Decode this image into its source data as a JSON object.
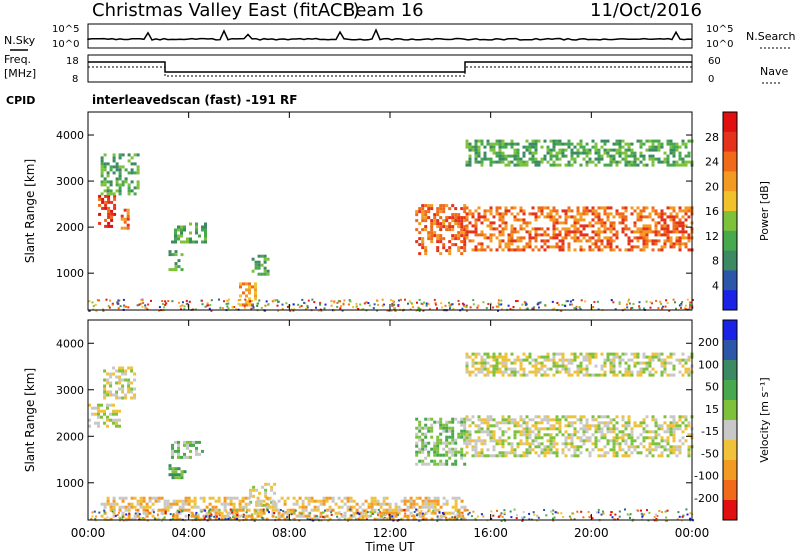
{
  "header": {
    "station": "Christmas Valley East (fitACF)",
    "beam": "Beam 16",
    "date": "11/Oct/2016"
  },
  "top_panels": {
    "nsky_label": "N.Sky",
    "nsearch_label": "N.Search",
    "noise_ticks": [
      "10^5",
      "10^0"
    ],
    "freq_label_line1": "Freq.",
    "freq_label_line2": "[MHz]",
    "freq_ticks": [
      "18",
      "8"
    ],
    "nave_label": "Nave",
    "nave_ticks": [
      "60",
      "0"
    ],
    "cpid_label": "CPID",
    "cpid_text": "interleavedscan (fast) -191 RF"
  },
  "colors": {
    "power": [
      "#1a22e6",
      "#2c57a8",
      "#3c8a64",
      "#47a84d",
      "#7ec23c",
      "#f2c22c",
      "#f29a22",
      "#f06a1a",
      "#e5321a",
      "#e01010"
    ],
    "velocity": [
      "#e01010",
      "#f06a1a",
      "#f29a22",
      "#f0c23a",
      "#c8c8c8",
      "#7ec23c",
      "#47a84d",
      "#3c8a64",
      "#2c57a8",
      "#1a22e6"
    ],
    "ground_scatter": "#c0c0c0"
  },
  "chart_data": [
    {
      "type": "heatmap",
      "name": "power",
      "ylabel": "Slant Range [km]",
      "yticks": [
        "1000",
        "2000",
        "3000",
        "4000"
      ],
      "ylim": [
        200,
        4500
      ],
      "xlim_hours": [
        0,
        24
      ],
      "xticks": [
        "00:00",
        "04:00",
        "08:00",
        "12:00",
        "16:00",
        "20:00",
        "00:00"
      ],
      "colorbar_label": "Power [dB]",
      "colorbar_ticks": [
        "4",
        "8",
        "12",
        "16",
        "20",
        "24",
        "28"
      ],
      "regions": [
        {
          "t0": 0.4,
          "t1": 1.1,
          "r0": 2000,
          "r1": 2700,
          "level": 8
        },
        {
          "t0": 0.5,
          "t1": 2.0,
          "r0": 2700,
          "r1": 3600,
          "level": 3
        },
        {
          "t0": 1.3,
          "t1": 1.6,
          "r0": 2000,
          "r1": 2400,
          "level": 7
        },
        {
          "t0": 3.3,
          "t1": 4.7,
          "r0": 1650,
          "r1": 2100,
          "level": 3
        },
        {
          "t0": 3.2,
          "t1": 3.7,
          "r0": 1100,
          "r1": 1500,
          "level": 3
        },
        {
          "t0": 6.5,
          "t1": 7.2,
          "r0": 1000,
          "r1": 1400,
          "level": 3
        },
        {
          "t0": 6.0,
          "t1": 6.7,
          "r0": 300,
          "r1": 800,
          "level": 6
        },
        {
          "t0": 13.0,
          "t1": 15.0,
          "r0": 1400,
          "r1": 2500,
          "level": 7
        },
        {
          "t0": 15.0,
          "t1": 24.0,
          "r0": 1500,
          "r1": 2450,
          "level": 7
        },
        {
          "t0": 15.0,
          "t1": 24.0,
          "r0": 3350,
          "r1": 3900,
          "level": 3
        }
      ]
    },
    {
      "type": "heatmap",
      "name": "velocity",
      "ylabel": "Slant Range [km]",
      "yticks": [
        "1000",
        "2000",
        "3000",
        "4000"
      ],
      "ylim": [
        200,
        4500
      ],
      "xlim_hours": [
        0,
        24
      ],
      "xticks": [
        "00:00",
        "04:00",
        "08:00",
        "12:00",
        "16:00",
        "20:00",
        "00:00"
      ],
      "xlabel": "Time UT",
      "colorbar_label": "Velocity [m s⁻¹]",
      "colorbar_ticks": [
        "200",
        "100",
        "50",
        "15",
        "-15",
        "-50",
        "-100",
        "-200"
      ],
      "regions": [
        {
          "t0": 0.0,
          "t1": 1.2,
          "r0": 2200,
          "r1": 2700,
          "level": 4
        },
        {
          "t0": 0.6,
          "t1": 1.9,
          "r0": 2800,
          "r1": 3500,
          "level": 4
        },
        {
          "t0": 3.3,
          "t1": 4.6,
          "r0": 1550,
          "r1": 1900,
          "level": 5
        },
        {
          "t0": 3.2,
          "t1": 3.8,
          "r0": 1100,
          "r1": 1400,
          "level": 6
        },
        {
          "t0": 6.4,
          "t1": 7.4,
          "r0": 500,
          "r1": 1000,
          "level": 4
        },
        {
          "t0": 13.0,
          "t1": 15.0,
          "r0": 1400,
          "r1": 2400,
          "level": 5
        },
        {
          "t0": 15.0,
          "t1": 24.0,
          "r0": 1600,
          "r1": 2450,
          "level": 4
        },
        {
          "t0": 15.0,
          "t1": 24.0,
          "r0": 3300,
          "r1": 3800,
          "level": 4
        },
        {
          "t0": 0.5,
          "t1": 15.0,
          "r0": 200,
          "r1": 700,
          "level": 3
        }
      ]
    }
  ]
}
